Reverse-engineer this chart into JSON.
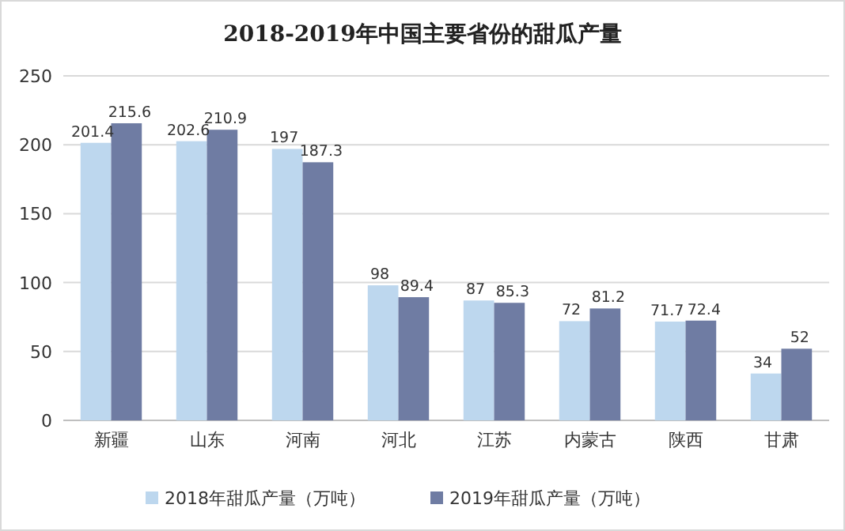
{
  "chart_data": {
    "type": "bar",
    "title": "2018-2019年中国主要省份的甜瓜产量",
    "categories": [
      "新疆",
      "山东",
      "河南",
      "河北",
      "江苏",
      "内蒙古",
      "陕西",
      "甘肃"
    ],
    "series": [
      {
        "name": "2018年甜瓜产量（万吨）",
        "color": "#bdd7ee",
        "values": [
          201.4,
          202.6,
          197,
          98,
          87,
          72,
          71.7,
          34
        ]
      },
      {
        "name": "2019年甜瓜产量（万吨）",
        "color": "#6f7ca3",
        "values": [
          215.6,
          210.9,
          187.3,
          89.4,
          85.3,
          81.2,
          72.4,
          52
        ]
      }
    ],
    "ylim": [
      0,
      250
    ],
    "yticks": [
      0,
      50,
      100,
      150,
      200,
      250
    ],
    "grid": "y",
    "legend": "bottom",
    "data_labels": true
  }
}
